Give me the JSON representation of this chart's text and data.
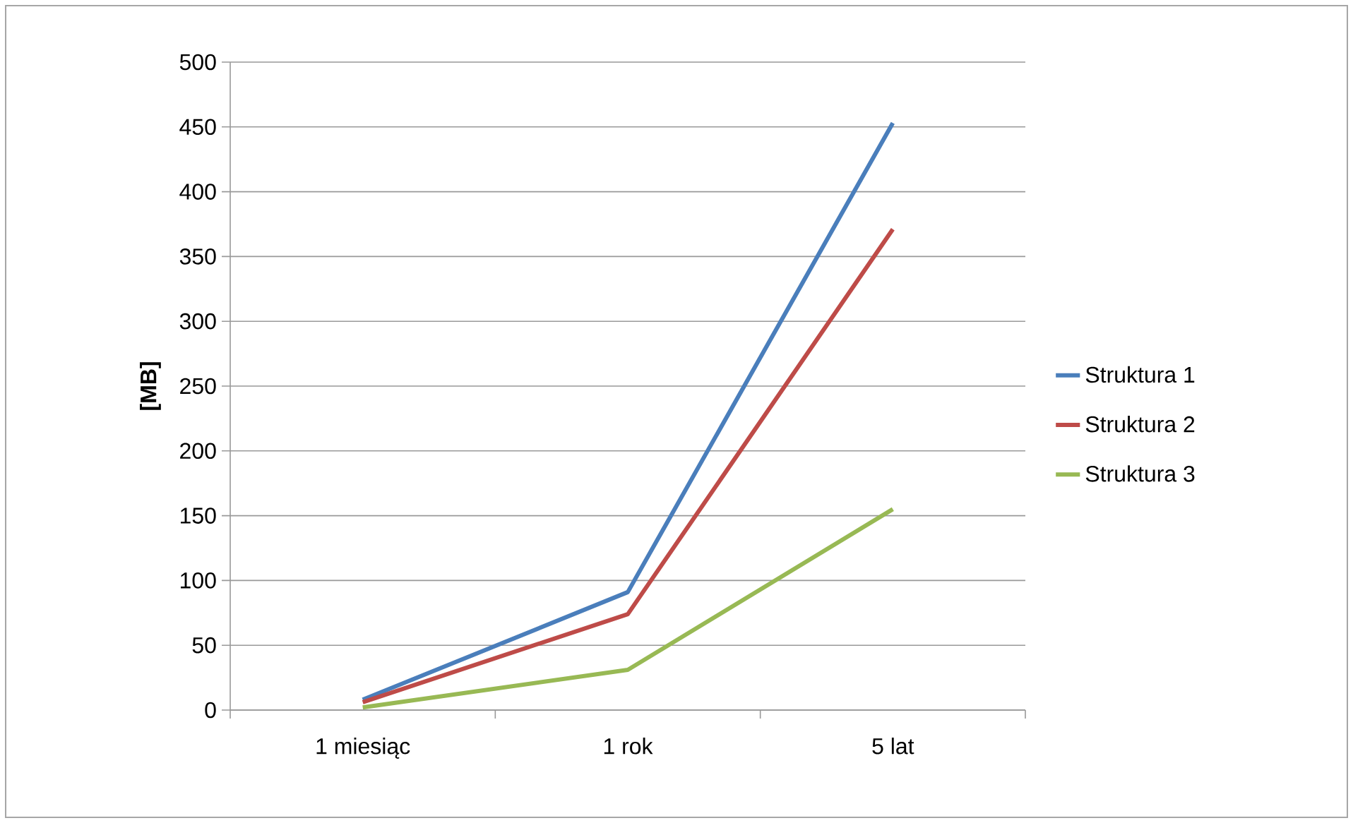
{
  "chart_data": {
    "type": "line",
    "ylabel": "[MB]",
    "categories": [
      "1 miesiąc",
      "1 rok",
      "5 lat"
    ],
    "series": [
      {
        "name": "Struktura 1",
        "color": "#4a7ebb",
        "values": [
          8,
          91,
          453
        ]
      },
      {
        "name": "Struktura 2",
        "color": "#be4b48",
        "values": [
          6,
          74,
          371
        ]
      },
      {
        "name": "Struktura 3",
        "color": "#98b954",
        "values": [
          2,
          31,
          155
        ]
      }
    ],
    "ylim": [
      0,
      500
    ],
    "yticks": [
      0,
      50,
      100,
      150,
      200,
      250,
      300,
      350,
      400,
      450,
      500
    ],
    "grid": "y",
    "legend": "right",
    "marker": "none",
    "line_style": "solid"
  }
}
